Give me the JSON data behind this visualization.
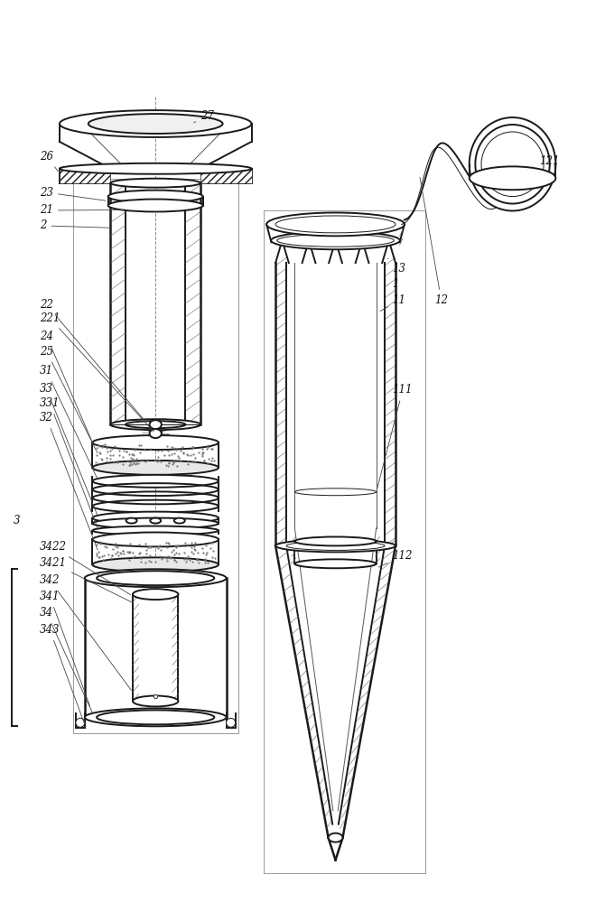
{
  "background_color": "#ffffff",
  "line_color": "#1a1a1a",
  "lw_main": 1.4,
  "lw_thin": 0.7,
  "lw_thick": 1.8,
  "figsize": [
    6.7,
    10.0
  ],
  "dpi": 100
}
